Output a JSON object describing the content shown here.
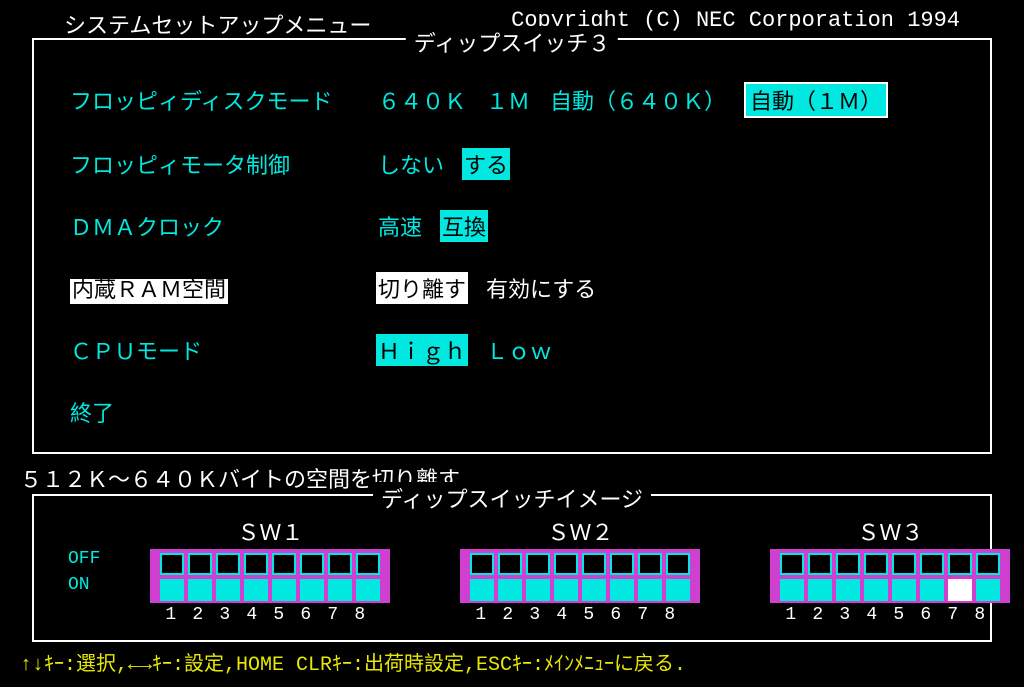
{
  "colors": {
    "bg": "#000000",
    "fg": "#ffffff",
    "cyan": "#00e8e0",
    "magenta": "#d040d0",
    "yellow": "#e8e800"
  },
  "header": {
    "title": "システムセットアップメニュー",
    "copyright": "Copyright (C) NEC Corporation 1994"
  },
  "panel": {
    "title": "ディップスイッチ３",
    "rows": [
      {
        "label": "フロッピィディスクモード",
        "label_style": "cyan",
        "options": [
          {
            "text": "６４０Ｋ",
            "style": "cyan"
          },
          {
            "text": "１Ｍ",
            "style": "cyan"
          },
          {
            "text": "自動（６４０Ｋ）",
            "style": "cyan"
          },
          {
            "text": "自動（１Ｍ）",
            "style": "sel-box"
          }
        ]
      },
      {
        "label": "フロッピィモータ制御",
        "label_style": "cyan",
        "options": [
          {
            "text": "しない",
            "style": "cyan"
          },
          {
            "text": "する",
            "style": "sel-cyan"
          }
        ]
      },
      {
        "label": "ＤＭＡクロック",
        "label_style": "cyan",
        "options": [
          {
            "text": "高速",
            "style": "cyan"
          },
          {
            "text": "互換",
            "style": "sel-cyan"
          }
        ]
      },
      {
        "label": "内蔵ＲＡＭ空間",
        "label_style": "inv-label",
        "options": [
          {
            "text": "切り離す",
            "style": "sel-white"
          },
          {
            "text": "有効にする",
            "style": "white"
          }
        ]
      },
      {
        "label": "ＣＰＵモード",
        "label_style": "cyan",
        "options": [
          {
            "text": "Ｈｉｇｈ",
            "style": "sel-cyan"
          },
          {
            "text": "Ｌｏｗ",
            "style": "cyan"
          }
        ]
      },
      {
        "label": "終了",
        "label_style": "cyan",
        "options": []
      }
    ]
  },
  "status_line": "５１２Ｋ～６４０Ｋバイトの空間を切り離す.",
  "dip": {
    "title": "ディップスイッチイメージ",
    "off_label": "OFF",
    "on_label": "ON",
    "numbers": "12345678",
    "banks": [
      {
        "name": "ＳＷ１",
        "off": [
          0,
          0,
          0,
          0,
          0,
          0,
          0,
          0
        ],
        "on": [
          1,
          1,
          1,
          1,
          1,
          1,
          1,
          1
        ],
        "cursor": -1
      },
      {
        "name": "ＳＷ２",
        "off": [
          0,
          0,
          0,
          0,
          0,
          0,
          0,
          0
        ],
        "on": [
          1,
          1,
          1,
          1,
          1,
          1,
          1,
          1
        ],
        "cursor": -1
      },
      {
        "name": "ＳＷ３",
        "off": [
          0,
          0,
          0,
          0,
          0,
          0,
          0,
          0
        ],
        "on": [
          1,
          1,
          1,
          1,
          1,
          1,
          1,
          1
        ],
        "cursor": 6
      }
    ]
  },
  "footer": "↑↓ｷｰ:選択,←→ｷｰ:設定,HOME CLRｷｰ:出荷時設定,ESCｷｰ:ﾒｲﾝﾒﾆｭｰに戻る."
}
